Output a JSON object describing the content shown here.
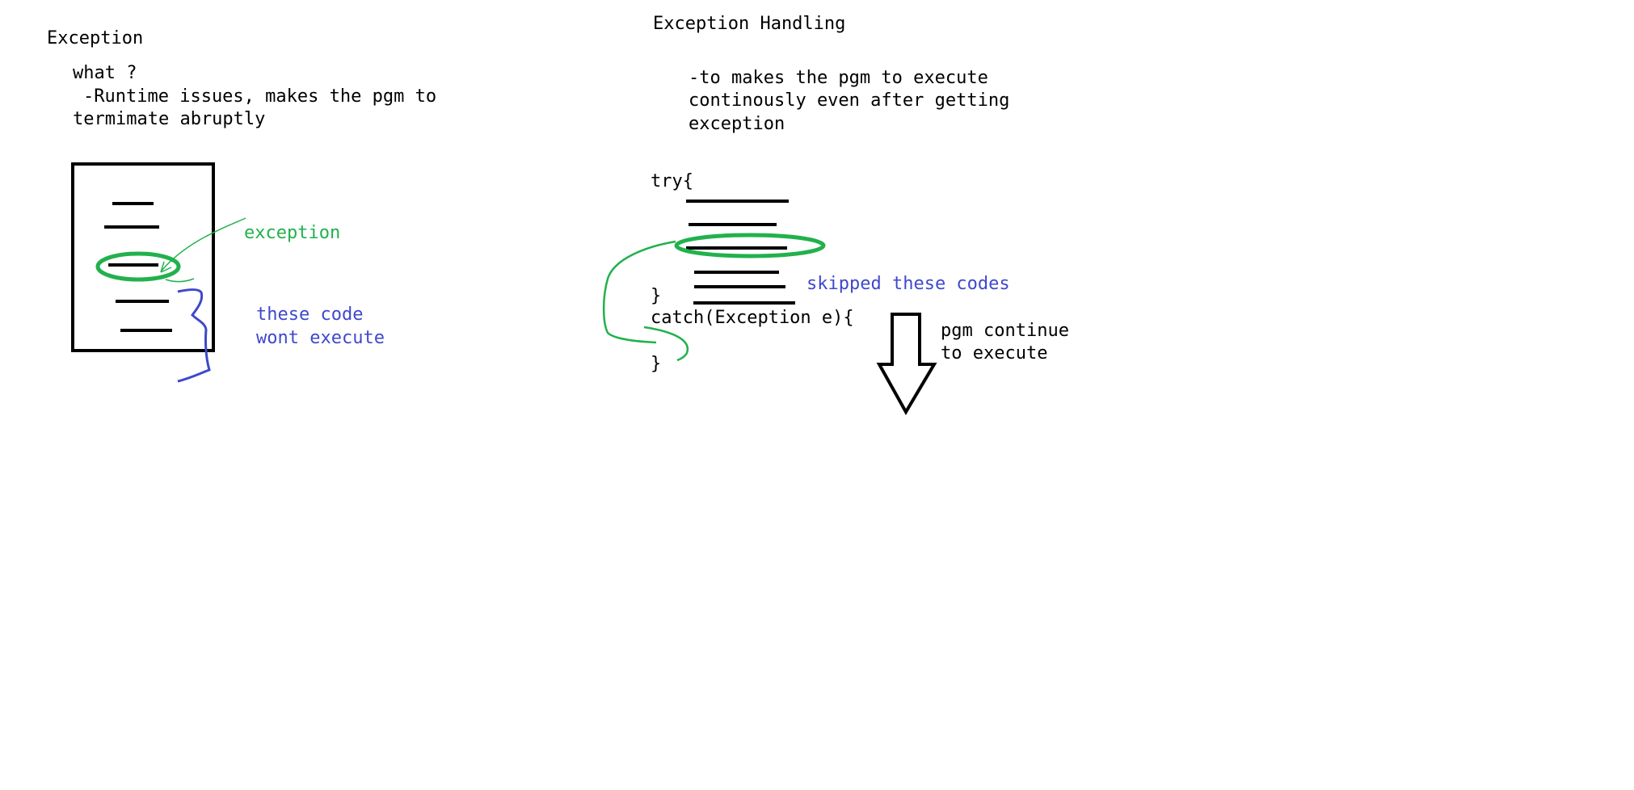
{
  "left_panel": {
    "title": "Exception",
    "question": "what ?",
    "definition_line1": "-Runtime issues, makes the pgm to",
    "definition_line2": "termimate abruptly",
    "exception_label": "exception",
    "not_executed_line1": "these code",
    "not_executed_line2": "wont execute"
  },
  "right_panel": {
    "title": "Exception Handling",
    "purpose_line1": "-to makes the pgm to execute",
    "purpose_line2": "continously even after getting",
    "purpose_line3": "exception",
    "try_open": "try{",
    "try_close": "}",
    "catch_open": "catch(Exception e){",
    "catch_close": "}",
    "skipped_label": "skipped these codes",
    "continue_line1": "pgm continue",
    "continue_line2": "to execute"
  },
  "colors": {
    "text": "#000000",
    "exception_highlight": "#22b14c",
    "annotation": "#3f48cc"
  }
}
